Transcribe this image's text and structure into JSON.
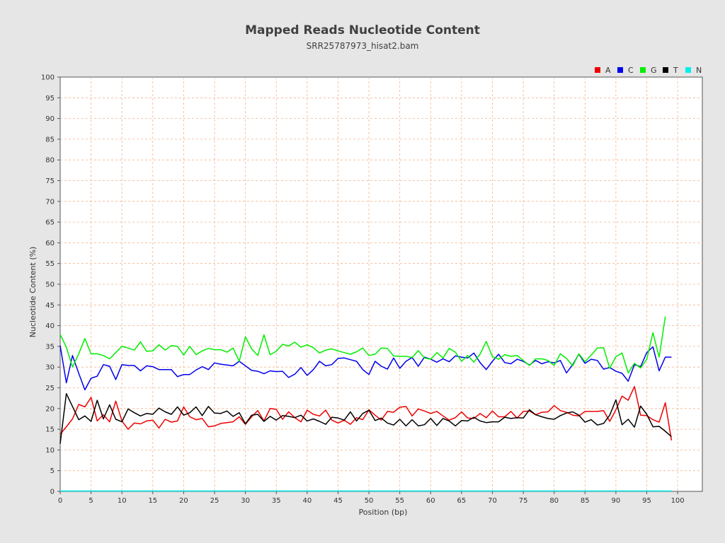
{
  "chart_data": {
    "type": "line",
    "title": "Mapped Reads Nucleotide Content",
    "subtitle": "SRR25787973_hisat2.bam",
    "xlabel": "Position (bp)",
    "ylabel": "Nucleotide Content (%)",
    "xlim": [
      0,
      104
    ],
    "ylim": [
      0,
      100
    ],
    "xticks": [
      0,
      5,
      10,
      15,
      20,
      25,
      30,
      35,
      40,
      45,
      50,
      55,
      60,
      65,
      70,
      75,
      80,
      85,
      90,
      95,
      100
    ],
    "yticks": [
      0,
      5,
      10,
      15,
      20,
      25,
      30,
      35,
      40,
      45,
      50,
      55,
      60,
      65,
      70,
      75,
      80,
      85,
      90,
      95,
      100
    ],
    "grid": true,
    "legend_position": "top-right",
    "series": [
      {
        "name": "A",
        "color": "#ee0000",
        "values": [
          13.8,
          15.6,
          17.5,
          21,
          20.4,
          22.7,
          17,
          18.5,
          16.8,
          21.8,
          17,
          15,
          16.5,
          16.3,
          17,
          17.2,
          15.3,
          17.4,
          16.7,
          17,
          20.4,
          18,
          17.3,
          17.6,
          15.6,
          15.8,
          16.4,
          16.6,
          16.8,
          18,
          16.2,
          18,
          19.5,
          17,
          20,
          19.8,
          17.4,
          19.2,
          17.8,
          16.8,
          19.6,
          18.6,
          18.2,
          19.6,
          17.2,
          16.5,
          17.2,
          16.2,
          17.8,
          17.3,
          19.7,
          18.4,
          17.2,
          19.3,
          19.1,
          20.3,
          20.5,
          18.2,
          19.9,
          19.4,
          18.8,
          19.3,
          18.2,
          17.2,
          17.8,
          19.2,
          17.7,
          17.6,
          18.8,
          17.8,
          19.4,
          18,
          18,
          19.3,
          17.7,
          19.3,
          19.4,
          18.5,
          19.1,
          19.2,
          20.7,
          19.5,
          19.1,
          18.4,
          18.2,
          19.3,
          19.3,
          19.3,
          19.5,
          16.9,
          19.7,
          23,
          22,
          25.3,
          18.4,
          18.3,
          17.3,
          16.7,
          21.4,
          12.3
        ]
      },
      {
        "name": "C",
        "color": "#0000ee",
        "values": [
          35.2,
          26.2,
          32.8,
          28.5,
          24.5,
          27.3,
          27.8,
          30.6,
          30.2,
          27,
          30.6,
          30.4,
          30.4,
          29.1,
          30.3,
          30.1,
          29.4,
          29.4,
          29.4,
          27.7,
          28.2,
          28.2,
          29.3,
          30.1,
          29.4,
          31,
          30.7,
          30.5,
          30.3,
          31.4,
          30.3,
          29.2,
          29,
          28.4,
          29.1,
          28.9,
          29,
          27.5,
          28.3,
          29.9,
          28,
          29.4,
          31.4,
          30.3,
          30.6,
          32.1,
          32.2,
          31.8,
          31.4,
          29.4,
          28.2,
          31.4,
          30.2,
          29.5,
          32.2,
          29.7,
          31.4,
          32.3,
          30.2,
          32.4,
          31.9,
          31.2,
          32,
          31.3,
          32.7,
          32.4,
          32.2,
          33.4,
          31.1,
          29.4,
          31.4,
          33.1,
          31.1,
          30.8,
          31.9,
          31.4,
          30.5,
          31.6,
          30.8,
          31.3,
          31,
          31.6,
          28.6,
          30.6,
          33.1,
          30.9,
          31.9,
          31.6,
          29.5,
          29.9,
          29,
          28.5,
          26.6,
          30.6,
          30.1,
          33.5,
          34.9,
          29.1,
          32.4,
          32.4
        ]
      },
      {
        "name": "G",
        "color": "#00ee00",
        "values": [
          37.9,
          34.8,
          30,
          33.2,
          36.9,
          33.2,
          33.2,
          32.8,
          32,
          33.5,
          35,
          34.6,
          34.1,
          36.1,
          33.8,
          33.9,
          35.4,
          34.1,
          35.2,
          35,
          32.9,
          35,
          33,
          33.9,
          34.5,
          34.2,
          34.2,
          33.6,
          34.6,
          31.4,
          37.3,
          34.4,
          32.8,
          37.8,
          33,
          33.8,
          35.5,
          35.1,
          36,
          34.8,
          35.4,
          34.7,
          33.4,
          34.1,
          34.4,
          33.9,
          33.5,
          33.1,
          33.7,
          34.6,
          32.8,
          33.1,
          34.6,
          34.5,
          32.7,
          32.6,
          32.6,
          32.3,
          34,
          32.2,
          31.9,
          33.5,
          32.2,
          34.5,
          33.6,
          31.4,
          32.8,
          31.2,
          33.1,
          36.2,
          32.5,
          31.9,
          33,
          32.6,
          32.8,
          31.6,
          30.4,
          32,
          32,
          31.6,
          30.4,
          33.2,
          32.1,
          30.3,
          33.2,
          31.3,
          32.9,
          34.6,
          34.7,
          29.7,
          32.5,
          33.4,
          28.6,
          30.9,
          29.8,
          31.9,
          38.3,
          32.4,
          42.2
        ]
      },
      {
        "name": "T",
        "color": "#000000",
        "values": [
          11.5,
          23.6,
          20.5,
          17.3,
          18.2,
          16.9,
          22,
          17.5,
          20.9,
          17.4,
          16.8,
          19.9,
          19,
          18.2,
          18.8,
          18.6,
          20.1,
          19.2,
          18.6,
          20.4,
          18.4,
          19,
          20.4,
          18.3,
          20.5,
          18.9,
          18.8,
          19.4,
          18.1,
          19,
          16.3,
          18.4,
          18.6,
          16.9,
          18.1,
          17.2,
          18.3,
          18.1,
          17.8,
          18.4,
          17,
          17.5,
          16.9,
          16.2,
          17.9,
          17.7,
          17.2,
          19.2,
          17,
          18.8,
          19.6,
          17.1,
          17.7,
          16.5,
          16,
          17.4,
          15.8,
          17.3,
          15.8,
          16.1,
          17.6,
          15.9,
          17.6,
          17,
          15.8,
          17.1,
          17,
          17.9,
          17,
          16.6,
          16.8,
          16.8,
          17.9,
          17.6,
          17.8,
          17.7,
          19.7,
          18.5,
          18,
          17.6,
          17.4,
          18.3,
          18.9,
          19.2,
          18.4,
          16.7,
          17.3,
          16,
          16.4,
          18.4,
          22.1,
          16.1,
          17.4,
          15.5,
          20.6,
          18.6,
          15.6,
          15.7,
          14.5,
          13.2
        ]
      },
      {
        "name": "N",
        "color": "#00eeee",
        "values": [
          0.1,
          0.1,
          0.1,
          0.1,
          0.1,
          0.1,
          0.1,
          0.1,
          0.1,
          0.1,
          0.1,
          0.1,
          0.1,
          0.1,
          0.1,
          0.1,
          0.1,
          0.1,
          0.1,
          0.1,
          0.1,
          0.1,
          0.1,
          0.1,
          0.1,
          0.1,
          0.1,
          0.1,
          0.1,
          0.1,
          0.1,
          0.1,
          0.1,
          0.1,
          0.1,
          0.1,
          0.1,
          0.1,
          0.1,
          0.1,
          0.1,
          0.1,
          0.1,
          0.1,
          0.1,
          0.1,
          0.1,
          0.1,
          0.1,
          0.1,
          0.1,
          0.1,
          0.1,
          0.1,
          0.1,
          0.1,
          0.1,
          0.1,
          0.1,
          0.1,
          0.1,
          0.1,
          0.1,
          0.1,
          0.1,
          0.1,
          0.1,
          0.1,
          0.1,
          0.1,
          0.1,
          0.1,
          0.1,
          0.1,
          0.1,
          0.1,
          0.1,
          0.1,
          0.1,
          0.1,
          0.1,
          0.1,
          0.1,
          0.1,
          0.1,
          0.1,
          0.1,
          0.1,
          0.1,
          0.1,
          0.1,
          0.1,
          0.1,
          0.1,
          0.1,
          0.1,
          0.1,
          0.1,
          0.1,
          0.1
        ]
      }
    ]
  }
}
